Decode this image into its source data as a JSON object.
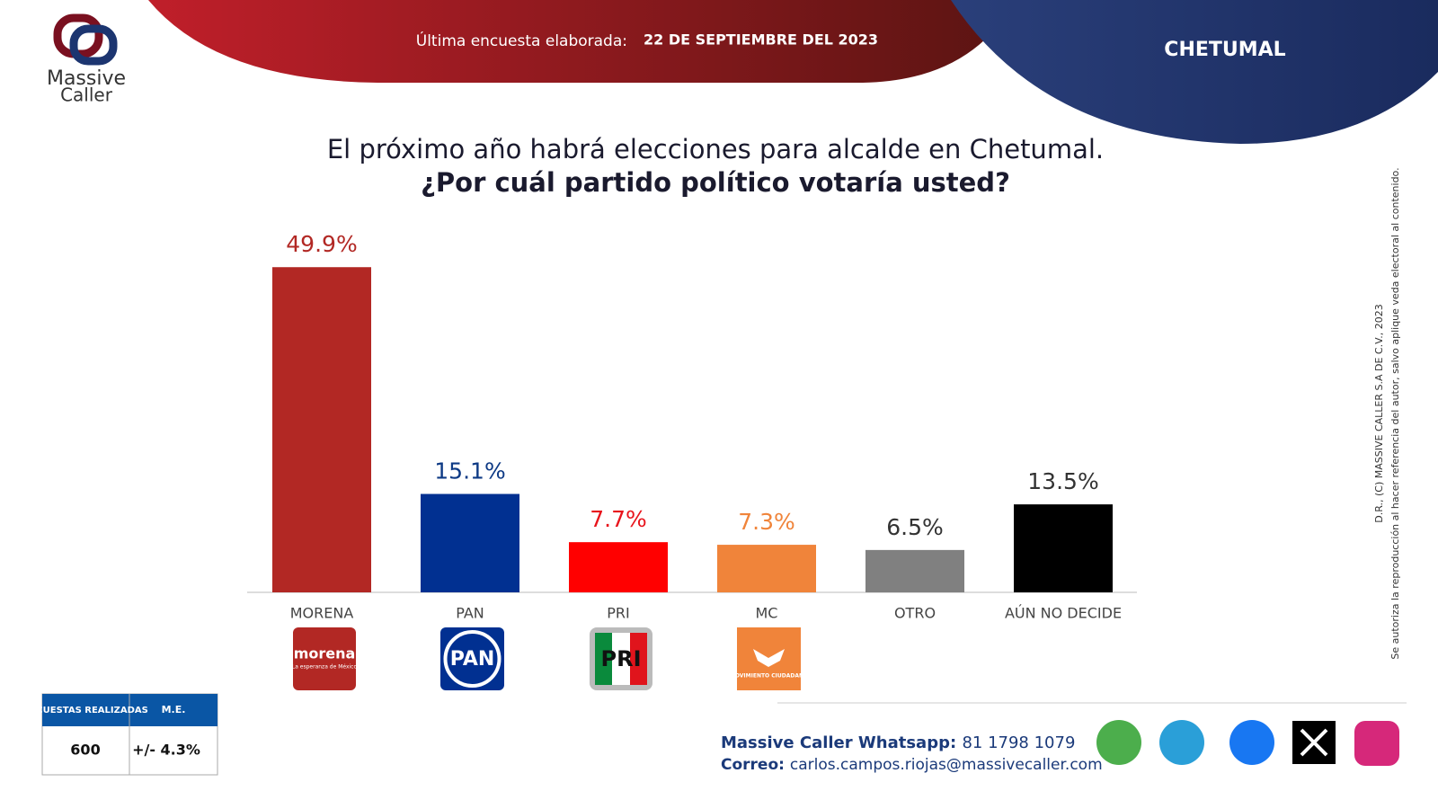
{
  "header": {
    "survey_label": "Última encuesta elaborada:",
    "survey_date": "22 DE SEPTIEMBRE DEL 2023",
    "city": "CHETUMAL"
  },
  "logo": {
    "line1": "Massive",
    "line2": "Caller"
  },
  "chart_data": {
    "type": "bar",
    "title": "El próximo año habrá elecciones para alcalde en Chetumal.",
    "subtitle": "¿Por cuál partido político votaría usted?",
    "categories": [
      "MORENA",
      "PAN",
      "PRI",
      "MC",
      "OTRO",
      "AÚN NO DECIDE"
    ],
    "values": [
      49.9,
      15.1,
      7.7,
      7.3,
      6.5,
      13.5
    ],
    "value_labels": [
      "49.9%",
      "15.1%",
      "7.7%",
      "7.3%",
      "6.5%",
      "13.5%"
    ],
    "colors": [
      "#b22824",
      "#013091",
      "#ff0000",
      "#f0843a",
      "#808080",
      "#000000"
    ],
    "label_colors": [
      "#b22824",
      "#0e3a85",
      "#e8141c",
      "#f0843a",
      "#333333",
      "#333333"
    ]
  },
  "party_logos": {
    "morena": "morena",
    "morena_tag": "La esperanza de México",
    "pan": "PAN",
    "pri": "PRI",
    "mc": "MOVIMIENTO CIUDADANO"
  },
  "side_note": [
    "D.R., (C) MASSIVE CALLER S.A DE C.V., 2023",
    "Se autoriza la reproducción al hacer referencia del autor, salvo aplique veda electoral al contenido."
  ],
  "stats_table": {
    "headers": [
      "ENCUESTAS REALIZADAS",
      "M.E."
    ],
    "values": [
      "600",
      "+/- 4.3%"
    ]
  },
  "contact": {
    "whatsapp_label": "Massive Caller Whatsapp:",
    "whatsapp": "81 1798 1079",
    "email_label": "Correo:",
    "email": "carlos.campos.riojas@massivecaller.com"
  }
}
